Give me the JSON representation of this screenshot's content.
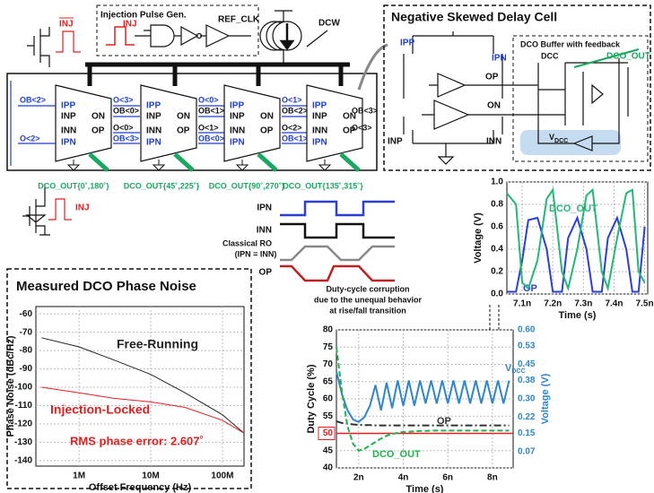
{
  "schematic": {
    "inj_bar": "INJ",
    "inj_pulse_gen": {
      "title": "Injection Pulse Gen.",
      "inj": "INJ",
      "ref_clk": "REF_CLK"
    },
    "dcw": "DCW",
    "pins": [
      "IPP",
      "INP",
      "INN",
      "IPN",
      "ON",
      "OP"
    ],
    "input_labels": [
      "OB<2>",
      "O<2>"
    ],
    "links": [
      [
        "O<3>",
        "OB<0>",
        "O<0>",
        "OB<3>"
      ],
      [
        "O<0>",
        "OB<1>",
        "O<1>",
        "OB<0>"
      ],
      [
        "O<1>",
        "OB<2>",
        "O<2>",
        "OB<1>"
      ]
    ],
    "output_labels": [
      "OB<3>",
      "O<3>"
    ],
    "outputs": [
      "DCO_OUT{0˚,180˚}",
      "DCO_OUT{45˚,225˚}",
      "DCO_OUT{90˚,270˚}",
      "DCO_OUT{135˚,315˚}"
    ],
    "inj": "INJ"
  },
  "delay_cell": {
    "title": "Negative Skewed Delay Cell",
    "ipp": "IPP",
    "ipn": "IPN",
    "op": "OP",
    "on": "ON",
    "inp": "INP",
    "inn": "INN",
    "buffer": "DCO Buffer with feedback",
    "dcc": "DCC",
    "dco_out": "DCO_OUT",
    "vdcc": "VDCC"
  },
  "waveforms": {
    "labels": [
      "IPN",
      "INN",
      "Classical RO",
      "(IPN = INN)",
      "OP"
    ],
    "caption": [
      "Duty-cycle corruption",
      "due to the unequal behavior",
      "at rise/fall transition"
    ]
  },
  "chart_data": [
    {
      "type": "line",
      "xlabel": "Time (s)",
      "ylabel": "Voltage (V)",
      "x": [
        7.05,
        7.08,
        7.1,
        7.12,
        7.15,
        7.18,
        7.2,
        7.23,
        7.25,
        7.28,
        7.31,
        7.33,
        7.36,
        7.38,
        7.41,
        7.44,
        7.46,
        7.48,
        7.5
      ],
      "series": [
        {
          "name": "OP",
          "color": "#2a3fd6",
          "values": [
            0.02,
            0.02,
            0.3,
            0.66,
            0.68,
            0.4,
            0.02,
            0.02,
            0.5,
            0.68,
            0.4,
            0.02,
            0.02,
            0.5,
            0.68,
            0.4,
            0.02,
            0.02,
            0.6
          ]
        },
        {
          "name": "DCO_OUT",
          "color": "#23b878",
          "values": [
            0.9,
            0.8,
            0.1,
            0.05,
            0.3,
            0.85,
            0.93,
            0.2,
            0.05,
            0.4,
            0.88,
            0.93,
            0.2,
            0.05,
            0.5,
            0.9,
            0.93,
            0.2,
            0.1
          ]
        }
      ],
      "xlim": [
        7.05,
        7.51
      ],
      "ylim": [
        0,
        1
      ],
      "xticks": [
        {
          "value": 7.1,
          "label": "7.1n"
        },
        {
          "value": 7.2,
          "label": "7.2n"
        },
        {
          "value": 7.3,
          "label": "7.3n"
        },
        {
          "value": 7.4,
          "label": "7.4n"
        },
        {
          "value": 7.5,
          "label": "7.5n"
        }
      ],
      "yticks": [
        {
          "value": 0,
          "label": "0.0"
        },
        0.2,
        0.4,
        0.6,
        0.8,
        {
          "value": 1,
          "label": "1.0"
        }
      ],
      "grid": true
    },
    {
      "type": "line",
      "title": "Measured DCO Phase Noise",
      "xlabel": "Offset Frequency (Hz)",
      "ylabel": "Phase Noise (dBc/Hz)",
      "xscale": "log",
      "x": [
        300000,
        1000000,
        3000000,
        10000000,
        30000000,
        100000000,
        200000000
      ],
      "series": [
        {
          "name": "Free-Running",
          "color": "#222222",
          "values": [
            -73,
            -78,
            -85,
            -93,
            -103,
            -115,
            -125
          ]
        },
        {
          "name": "Injection-Locked",
          "color": "#e02020",
          "values": [
            -100,
            -103,
            -106,
            -108,
            -111,
            -118,
            -125
          ]
        }
      ],
      "annotation": "RMS phase error: 2.607˚",
      "xlim": [
        250000,
        200000000
      ],
      "ylim": [
        -143,
        -56
      ],
      "xticks": [
        {
          "value": 1000000,
          "label": "1M"
        },
        {
          "value": 10000000,
          "label": "10M"
        },
        {
          "value": 100000000,
          "label": "100M"
        }
      ],
      "yticks": [
        -60,
        -70,
        -80,
        -90,
        -100,
        -110,
        -120,
        -130,
        -140
      ],
      "grid": true
    },
    {
      "type": "line",
      "xlabel": "Time (s)",
      "ylabel": "Duty Cycle (%)",
      "y2label": "Voltage (V)",
      "x": [
        1,
        1.25,
        1.5,
        1.75,
        2,
        2.25,
        2.5,
        2.75,
        3,
        3.25,
        3.5,
        3.75,
        4,
        4.25,
        4.5,
        4.75,
        5,
        5.25,
        5.5,
        5.75,
        6,
        6.25,
        6.5,
        6.75,
        7,
        7.25,
        7.5,
        7.75,
        8,
        8.25,
        8.5,
        8.75
      ],
      "series": [
        {
          "name": "VDCC",
          "color": "#2f86c8",
          "axis": "y2",
          "line_style": "solid",
          "values": [
            0.42,
            0.32,
            0.25,
            0.21,
            0.2,
            0.22,
            0.27,
            0.36,
            0.25,
            0.37,
            0.26,
            0.38,
            0.27,
            0.38,
            0.27,
            0.38,
            0.28,
            0.38,
            0.28,
            0.38,
            0.28,
            0.38,
            0.28,
            0.38,
            0.28,
            0.38,
            0.28,
            0.38,
            0.28,
            0.38,
            0.28,
            0.38
          ]
        },
        {
          "name": "OP",
          "color": "#333333",
          "line_style": "dashdot",
          "values": [
            53.5,
            53,
            52.8,
            52.6,
            52.5,
            52.4,
            52.4,
            52.3,
            52.3,
            52.3,
            52.3,
            52.3,
            52.3,
            52.3,
            52.3,
            52.3,
            52.3,
            52.3,
            52.3,
            52.3,
            52.3,
            52.3,
            52.3,
            52.3,
            52.3,
            52.3,
            52.3,
            52.3,
            52.3,
            52.3,
            52.3,
            52.3
          ]
        },
        {
          "name": "DCO_OUT",
          "color": "#23b050",
          "line_style": "dashed",
          "values": [
            75,
            62,
            52,
            47,
            45,
            45.5,
            46.5,
            47.5,
            48.5,
            49.3,
            49.8,
            50.2,
            50.4,
            50.5,
            50.6,
            50.7,
            50.7,
            50.8,
            50.8,
            50.8,
            50.8,
            50.8,
            50.8,
            50.8,
            50.8,
            50.8,
            50.8,
            50.8,
            50.8,
            50.8,
            50.8,
            50.8
          ]
        }
      ],
      "ref_line": 50,
      "ref_color": "#e02020",
      "xlim": [
        1,
        8.93
      ],
      "ylim": [
        40,
        80
      ],
      "y2lim": [
        0,
        0.6
      ],
      "xticks": [
        {
          "value": 2,
          "label": "2n"
        },
        {
          "value": 4,
          "label": "4n"
        },
        {
          "value": 6,
          "label": "6n"
        },
        {
          "value": 8,
          "label": "8n"
        }
      ],
      "yticks": [
        40,
        45,
        50,
        55,
        60,
        65,
        70,
        75,
        80
      ],
      "y2ticks": [
        0.07,
        0.15,
        0.22,
        {
          "value": 0.3,
          "label": "0.30"
        },
        0.38,
        0.45,
        0.53,
        {
          "value": 0.6,
          "label": "0.60"
        }
      ],
      "grid": true
    }
  ]
}
